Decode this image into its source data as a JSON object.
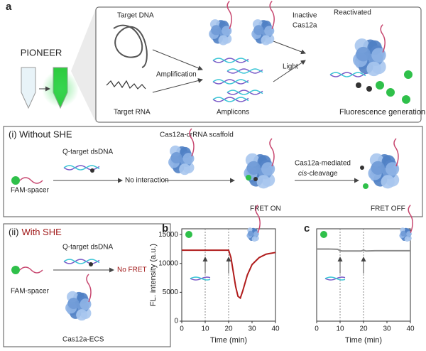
{
  "panel_a": {
    "label": "a",
    "title": "PIONEER",
    "target_dna": "Target DNA",
    "target_rna": "Target RNA",
    "amplification": "Amplification",
    "amplicons": "Amplicons",
    "inactive": [
      "Inactive",
      "Cas12a"
    ],
    "light": "Light",
    "reactivated": "Reactivated",
    "fluorescence": "Fluorescence generation"
  },
  "panel_i": {
    "title": "(i) Without SHE",
    "q_target": "Q-target dsDNA",
    "fam": "FAM-spacer",
    "no_interaction": "No interaction",
    "scaffold": "Cas12a-crRNA scaffold",
    "fret_on": "FRET ON",
    "cleavage": [
      "Cas12a-mediated",
      "cis",
      "-cleavage"
    ],
    "fret_off": "FRET OFF"
  },
  "panel_ii": {
    "title": [
      "(ii)",
      "With SHE"
    ],
    "q_target": "Q-target dsDNA",
    "fam": "FAM-spacer",
    "no_fret": "No FRET",
    "ecs": "Cas12a-ECS"
  },
  "chart_data": [
    {
      "type": "line",
      "label": "b",
      "ylabel": "FL. intensity (a.u.)",
      "xlabel": "Time (min)",
      "x": [
        0,
        5,
        10,
        15,
        20,
        21,
        22,
        23,
        24,
        25,
        26,
        28,
        30,
        33,
        36,
        40
      ],
      "series": [
        {
          "color": "#b01c1c",
          "values": [
            12300,
            12300,
            12300,
            12300,
            12300,
            11000,
            8500,
            6000,
            4300,
            4000,
            5200,
            8000,
            9800,
            11000,
            11600,
            11900
          ]
        }
      ],
      "xlim": [
        0,
        40
      ],
      "ylim": [
        0,
        16000
      ],
      "xticks": [
        0,
        10,
        20,
        30,
        40
      ],
      "yticks": [
        0,
        5000,
        10000,
        {
          "value": 15000,
          "label": "15000"
        }
      ],
      "vlines": [
        10,
        20
      ]
    },
    {
      "type": "line",
      "label": "c",
      "xlabel": "Time (min)",
      "x": [
        0,
        5,
        9,
        10,
        11,
        15,
        19,
        20,
        21,
        25,
        30,
        35,
        40
      ],
      "series": [
        {
          "color": "#8a8a8a",
          "values": [
            12500,
            12500,
            12450,
            12200,
            12150,
            12150,
            12150,
            12300,
            12150,
            12200,
            12200,
            12200,
            12200
          ]
        }
      ],
      "xlim": [
        0,
        40
      ],
      "ylim": [
        0,
        16000
      ],
      "xticks": [
        0,
        10,
        20,
        30,
        40
      ],
      "vlines": [
        10,
        20
      ]
    }
  ]
}
